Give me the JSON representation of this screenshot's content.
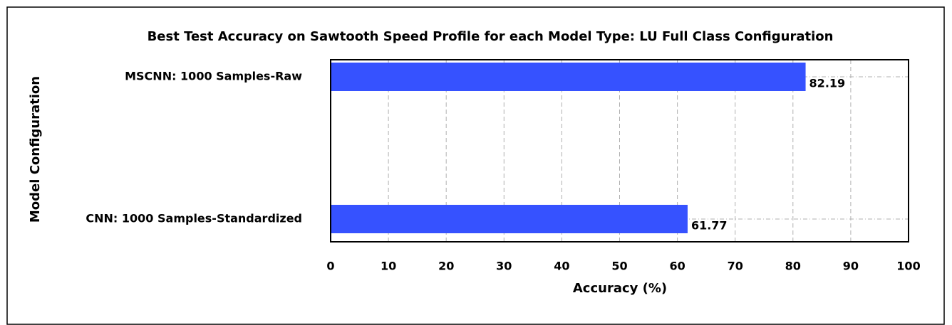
{
  "chart_data": {
    "type": "bar",
    "orientation": "horizontal",
    "title": "Best Test Accuracy on Sawtooth Speed Profile for each Model Type: LU Full Class Configuration",
    "categories": [
      "MSCNN: 1000 Samples-Raw",
      "CNN: 1000 Samples-Standardized"
    ],
    "values": [
      82.19,
      61.77
    ],
    "color": "#3652ff",
    "xlabel": "Accuracy (%)",
    "ylabel": "Model Configuration",
    "xlim": [
      0,
      100
    ],
    "xticks": [
      0,
      10,
      20,
      30,
      40,
      50,
      60,
      70,
      80,
      90,
      100
    ],
    "grid": true
  }
}
